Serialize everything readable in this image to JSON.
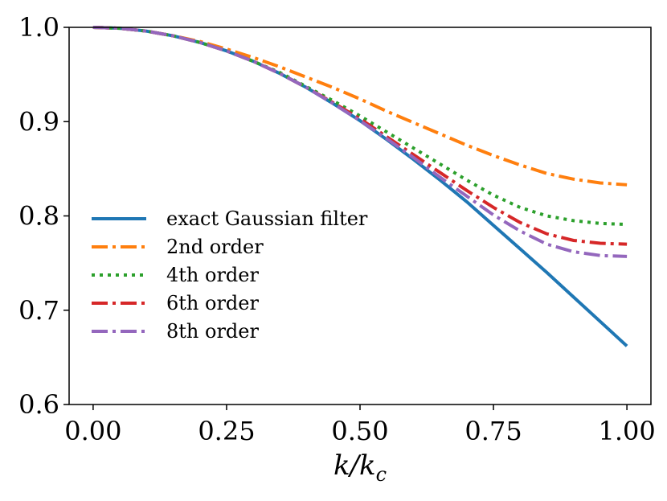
{
  "chart_data": {
    "type": "line",
    "title": "",
    "xlabel": "k/k",
    "xlabel_sub": "c",
    "ylabel": "",
    "xlim": [
      -0.045,
      1.045
    ],
    "ylim": [
      0.6,
      1.0
    ],
    "xticks": [
      0.0,
      0.25,
      0.5,
      0.75,
      1.0
    ],
    "xtick_labels": [
      "0.00",
      "0.25",
      "0.50",
      "0.75",
      "1.00"
    ],
    "yticks": [
      0.6,
      0.7,
      0.8,
      0.9,
      1.0
    ],
    "ytick_labels": [
      "0.6",
      "0.7",
      "0.8",
      "0.9",
      "1.0"
    ],
    "grid": false,
    "legend_position": "center-left",
    "x": [
      0.0,
      0.05,
      0.1,
      0.15,
      0.2,
      0.25,
      0.3,
      0.35,
      0.4,
      0.45,
      0.5,
      0.55,
      0.6,
      0.65,
      0.7,
      0.75,
      0.8,
      0.85,
      0.9,
      0.95,
      1.0
    ],
    "series": [
      {
        "name": "exact Gaussian filter",
        "color": "#1f77b4",
        "dash": "solid",
        "values": [
          1.0,
          0.999,
          0.996,
          0.991,
          0.984,
          0.975,
          0.964,
          0.951,
          0.936,
          0.919,
          0.901,
          0.881,
          0.86,
          0.838,
          0.815,
          0.79,
          0.765,
          0.74,
          0.714,
          0.688,
          0.662
        ]
      },
      {
        "name": "2nd order",
        "color": "#ff7f0e",
        "dash": "dashdot",
        "values": [
          1.0,
          0.999,
          0.996,
          0.991,
          0.985,
          0.977,
          0.968,
          0.958,
          0.947,
          0.936,
          0.924,
          0.911,
          0.899,
          0.887,
          0.875,
          0.864,
          0.854,
          0.845,
          0.839,
          0.835,
          0.833
        ]
      },
      {
        "name": "4th order",
        "color": "#2ca02c",
        "dash": "dotted",
        "values": [
          1.0,
          0.999,
          0.996,
          0.991,
          0.984,
          0.975,
          0.964,
          0.952,
          0.937,
          0.922,
          0.906,
          0.889,
          0.872,
          0.855,
          0.838,
          0.822,
          0.809,
          0.8,
          0.795,
          0.792,
          0.791
        ]
      },
      {
        "name": "6th order",
        "color": "#d62728",
        "dash": "dashdot",
        "values": [
          1.0,
          0.999,
          0.996,
          0.991,
          0.984,
          0.975,
          0.964,
          0.951,
          0.936,
          0.92,
          0.903,
          0.884,
          0.865,
          0.846,
          0.827,
          0.809,
          0.793,
          0.781,
          0.774,
          0.771,
          0.77
        ]
      },
      {
        "name": "8th order",
        "color": "#9467bd",
        "dash": "dashdot",
        "values": [
          1.0,
          0.999,
          0.996,
          0.991,
          0.984,
          0.975,
          0.964,
          0.951,
          0.936,
          0.919,
          0.901,
          0.882,
          0.862,
          0.841,
          0.821,
          0.801,
          0.784,
          0.77,
          0.762,
          0.758,
          0.757
        ]
      }
    ]
  }
}
